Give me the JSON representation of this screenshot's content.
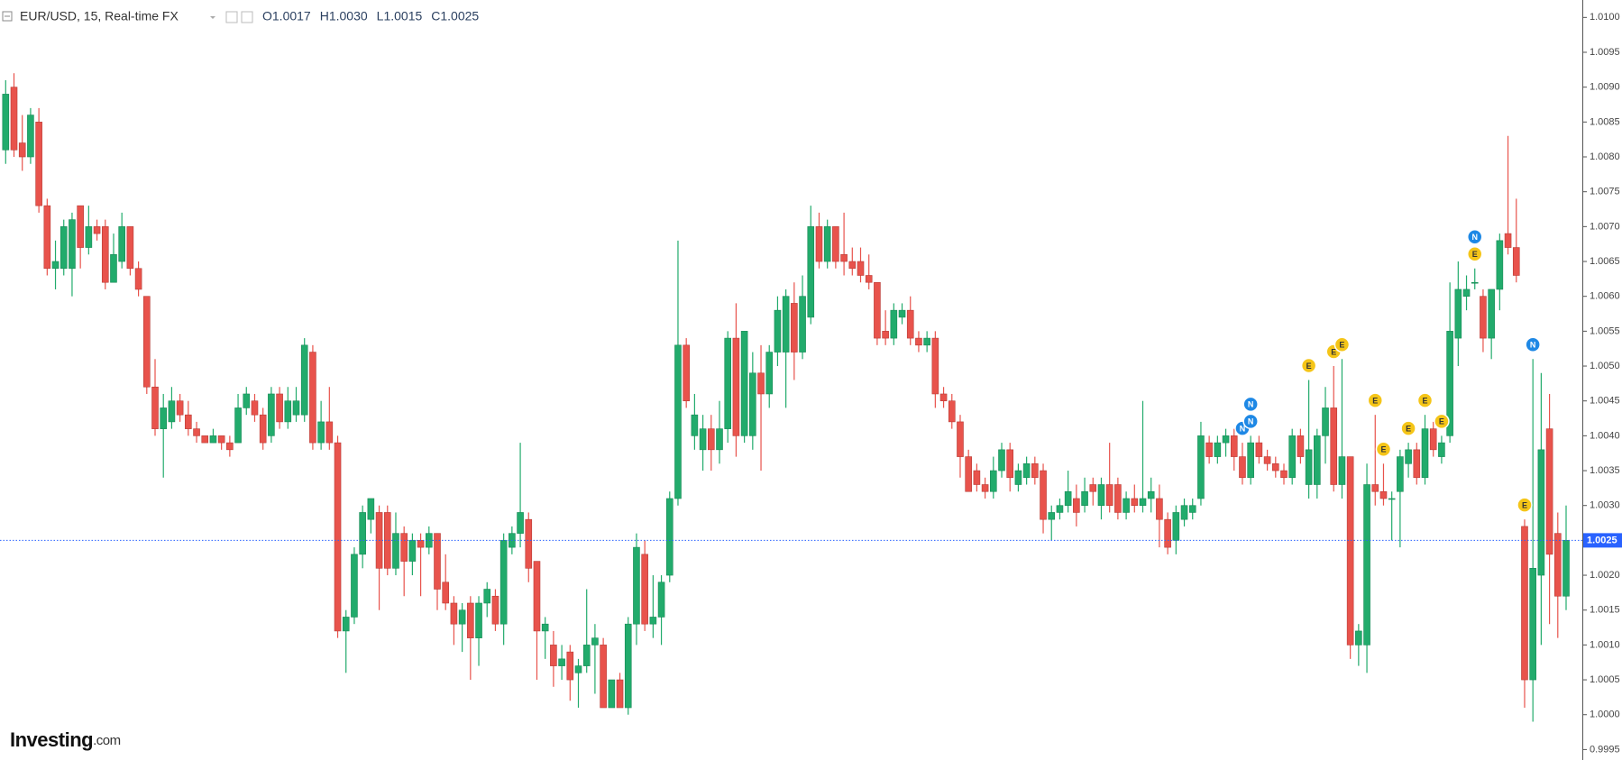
{
  "header": {
    "title": "EUR/USD, 15, Real-time FX",
    "ohlc": [
      "O1.0017",
      "H1.0030",
      "L1.0015",
      "C1.0025"
    ]
  },
  "logo": {
    "brand": "Investing",
    "suffix": ".com"
  },
  "chart_data": {
    "type": "candlestick",
    "up_color": "#22ab6c",
    "down_color": "#e8534c",
    "grid": false,
    "ylim": [
      0.99935,
      1.01025
    ],
    "yticks": [
      {
        "value": 0.9995,
        "label": "0.9995"
      },
      {
        "value": 1.0,
        "label": "1.0000"
      },
      {
        "value": 1.0005,
        "label": "1.0005"
      },
      {
        "value": 1.001,
        "label": "1.0010"
      },
      {
        "value": 1.0015,
        "label": "1.0015"
      },
      {
        "value": 1.002,
        "label": "1.0020"
      },
      {
        "value": 1.0025,
        "label": "1.0025"
      },
      {
        "value": 1.003,
        "label": "1.0030"
      },
      {
        "value": 1.0035,
        "label": "1.0035"
      },
      {
        "value": 1.004,
        "label": "1.0040"
      },
      {
        "value": 1.0045,
        "label": "1.0045"
      },
      {
        "value": 1.005,
        "label": "1.0050"
      },
      {
        "value": 1.0055,
        "label": "1.0055"
      },
      {
        "value": 1.006,
        "label": "1.0060"
      },
      {
        "value": 1.0065,
        "label": "1.0065"
      },
      {
        "value": 1.007,
        "label": "1.0070"
      },
      {
        "value": 1.0075,
        "label": "1.0075"
      },
      {
        "value": 1.008,
        "label": "1.0080"
      },
      {
        "value": 1.0085,
        "label": "1.0085"
      },
      {
        "value": 1.009,
        "label": "1.0090"
      },
      {
        "value": 1.0095,
        "label": "1.0095"
      },
      {
        "value": 1.01,
        "label": "1.0100"
      }
    ],
    "last_price": {
      "value": 1.0025,
      "label": "1.0025",
      "color": "#2962ff"
    },
    "values": [
      [
        1.0081,
        1.0091,
        1.0079,
        1.0089
      ],
      [
        1.009,
        1.0092,
        1.008,
        1.0081
      ],
      [
        1.0082,
        1.0086,
        1.0078,
        1.008
      ],
      [
        1.008,
        1.0087,
        1.0079,
        1.0086
      ],
      [
        1.0085,
        1.0087,
        1.0072,
        1.0073
      ],
      [
        1.0073,
        1.0074,
        1.0063,
        1.0064
      ],
      [
        1.0064,
        1.0068,
        1.0061,
        1.0065
      ],
      [
        1.0064,
        1.0071,
        1.0063,
        1.007
      ],
      [
        1.0064,
        1.0072,
        1.006,
        1.0071
      ],
      [
        1.0073,
        1.0073,
        1.0064,
        1.0067
      ],
      [
        1.0067,
        1.0073,
        1.0066,
        1.007
      ],
      [
        1.007,
        1.0071,
        1.0068,
        1.0069
      ],
      [
        1.007,
        1.0071,
        1.0061,
        1.0062
      ],
      [
        1.0062,
        1.0069,
        1.0062,
        1.0066
      ],
      [
        1.0065,
        1.0072,
        1.0064,
        1.007
      ],
      [
        1.007,
        1.007,
        1.0063,
        1.0064
      ],
      [
        1.0064,
        1.0065,
        1.006,
        1.0061
      ],
      [
        1.006,
        1.006,
        1.0046,
        1.0047
      ],
      [
        1.0047,
        1.0051,
        1.004,
        1.0041
      ],
      [
        1.0041,
        1.0046,
        1.0034,
        1.0044
      ],
      [
        1.0042,
        1.0047,
        1.0041,
        1.0045
      ],
      [
        1.0045,
        1.0046,
        1.0042,
        1.0043
      ],
      [
        1.0043,
        1.0045,
        1.004,
        1.0041
      ],
      [
        1.0041,
        1.0042,
        1.0039,
        1.004
      ],
      [
        1.004,
        1.004,
        1.0039,
        1.0039
      ],
      [
        1.0039,
        1.0041,
        1.0039,
        1.004
      ],
      [
        1.004,
        1.004,
        1.0038,
        1.0039
      ],
      [
        1.0039,
        1.004,
        1.0037,
        1.0038
      ],
      [
        1.0039,
        1.0046,
        1.0039,
        1.0044
      ],
      [
        1.0044,
        1.0047,
        1.0043,
        1.0046
      ],
      [
        1.0045,
        1.0046,
        1.0042,
        1.0043
      ],
      [
        1.0043,
        1.0044,
        1.0038,
        1.0039
      ],
      [
        1.004,
        1.0047,
        1.0039,
        1.0046
      ],
      [
        1.0046,
        1.0047,
        1.0041,
        1.0042
      ],
      [
        1.0042,
        1.0047,
        1.0041,
        1.0045
      ],
      [
        1.0043,
        1.0047,
        1.0042,
        1.0045
      ],
      [
        1.0043,
        1.0054,
        1.0042,
        1.0053
      ],
      [
        1.0052,
        1.0053,
        1.0038,
        1.0039
      ],
      [
        1.0039,
        1.0045,
        1.0038,
        1.0042
      ],
      [
        1.0042,
        1.0047,
        1.0038,
        1.0039
      ],
      [
        1.0039,
        1.004,
        1.0011,
        1.0012
      ],
      [
        1.0012,
        1.0015,
        1.0006,
        1.0014
      ],
      [
        1.0014,
        1.0024,
        1.0013,
        1.0023
      ],
      [
        1.0023,
        1.003,
        1.0021,
        1.0029
      ],
      [
        1.0028,
        1.0031,
        1.0026,
        1.0031
      ],
      [
        1.0029,
        1.003,
        1.0015,
        1.0021
      ],
      [
        1.0029,
        1.003,
        1.002,
        1.0021
      ],
      [
        1.0021,
        1.0029,
        1.002,
        1.0026
      ],
      [
        1.0026,
        1.0027,
        1.0017,
        1.0022
      ],
      [
        1.0022,
        1.0026,
        1.002,
        1.0025
      ],
      [
        1.0025,
        1.0026,
        1.0017,
        1.0024
      ],
      [
        1.0024,
        1.0027,
        1.0023,
        1.0026
      ],
      [
        1.0026,
        1.0026,
        1.0015,
        1.0018
      ],
      [
        1.0019,
        1.0023,
        1.0015,
        1.0016
      ],
      [
        1.0016,
        1.0017,
        1.001,
        1.0013
      ],
      [
        1.0013,
        1.0016,
        1.0009,
        1.0015
      ],
      [
        1.0016,
        1.0017,
        1.0005,
        1.0011
      ],
      [
        1.0011,
        1.0017,
        1.0007,
        1.0016
      ],
      [
        1.0016,
        1.0019,
        1.0014,
        1.0018
      ],
      [
        1.0017,
        1.0018,
        1.0012,
        1.0013
      ],
      [
        1.0013,
        1.0026,
        1.001,
        1.0025
      ],
      [
        1.0024,
        1.0027,
        1.0023,
        1.0026
      ],
      [
        1.0026,
        1.0039,
        1.0024,
        1.0029
      ],
      [
        1.0028,
        1.0029,
        1.0019,
        1.0021
      ],
      [
        1.0022,
        1.0022,
        1.0005,
        1.0012
      ],
      [
        1.0012,
        1.0014,
        1.0008,
        1.0013
      ],
      [
        1.001,
        1.0012,
        1.0004,
        1.0007
      ],
      [
        1.0007,
        1.001,
        1.0005,
        1.0008
      ],
      [
        1.0009,
        1.001,
        1.0002,
        1.0005
      ],
      [
        1.0006,
        1.0008,
        1.0001,
        1.0007
      ],
      [
        1.0007,
        1.0018,
        1.0006,
        1.001
      ],
      [
        1.001,
        1.0013,
        1.0003,
        1.0011
      ],
      [
        1.001,
        1.0011,
        1.0001,
        1.0001
      ],
      [
        1.0001,
        1.0005,
        1.0001,
        1.0005
      ],
      [
        1.0005,
        1.0006,
        1.0001,
        1.0001
      ],
      [
        1.0001,
        1.0014,
        1.0,
        1.0013
      ],
      [
        1.0013,
        1.0026,
        1.001,
        1.0024
      ],
      [
        1.0023,
        1.0025,
        1.0012,
        1.0013
      ],
      [
        1.0013,
        1.002,
        1.0011,
        1.0014
      ],
      [
        1.0014,
        1.002,
        1.001,
        1.0019
      ],
      [
        1.002,
        1.0032,
        1.0019,
        1.0031
      ],
      [
        1.0031,
        1.0068,
        1.003,
        1.0053
      ],
      [
        1.0053,
        1.0054,
        1.0044,
        1.0045
      ],
      [
        1.004,
        1.0046,
        1.0038,
        1.0043
      ],
      [
        1.0038,
        1.0043,
        1.0035,
        1.0041
      ],
      [
        1.0041,
        1.0043,
        1.0035,
        1.0038
      ],
      [
        1.0038,
        1.0045,
        1.0036,
        1.0041
      ],
      [
        1.0041,
        1.0055,
        1.0039,
        1.0054
      ],
      [
        1.0054,
        1.0059,
        1.0037,
        1.004
      ],
      [
        1.004,
        1.0055,
        1.0039,
        1.0055
      ],
      [
        1.004,
        1.0052,
        1.0038,
        1.0049
      ],
      [
        1.0049,
        1.0053,
        1.0035,
        1.0046
      ],
      [
        1.0046,
        1.0053,
        1.0044,
        1.0052
      ],
      [
        1.0052,
        1.006,
        1.005,
        1.0058
      ],
      [
        1.0052,
        1.0061,
        1.0044,
        1.006
      ],
      [
        1.0059,
        1.0062,
        1.0048,
        1.0052
      ],
      [
        1.0052,
        1.0063,
        1.0051,
        1.006
      ],
      [
        1.0057,
        1.0073,
        1.0056,
        1.007
      ],
      [
        1.007,
        1.0072,
        1.0064,
        1.0065
      ],
      [
        1.0065,
        1.0071,
        1.0064,
        1.007
      ],
      [
        1.007,
        1.007,
        1.0064,
        1.0065
      ],
      [
        1.0066,
        1.0072,
        1.0063,
        1.0065
      ],
      [
        1.0065,
        1.0067,
        1.0063,
        1.0064
      ],
      [
        1.0065,
        1.0067,
        1.0062,
        1.0063
      ],
      [
        1.0063,
        1.0066,
        1.0061,
        1.0062
      ],
      [
        1.0062,
        1.0062,
        1.0053,
        1.0054
      ],
      [
        1.0055,
        1.0058,
        1.0053,
        1.0054
      ],
      [
        1.0054,
        1.0059,
        1.0053,
        1.0058
      ],
      [
        1.0057,
        1.0059,
        1.0056,
        1.0058
      ],
      [
        1.0058,
        1.006,
        1.0053,
        1.0054
      ],
      [
        1.0054,
        1.0055,
        1.0052,
        1.0053
      ],
      [
        1.0053,
        1.0055,
        1.0052,
        1.0054
      ],
      [
        1.0054,
        1.0055,
        1.0044,
        1.0046
      ],
      [
        1.0046,
        1.0047,
        1.0044,
        1.0045
      ],
      [
        1.0045,
        1.0046,
        1.0041,
        1.0042
      ],
      [
        1.0042,
        1.0043,
        1.0034,
        1.0037
      ],
      [
        1.0037,
        1.0038,
        1.0032,
        1.0032
      ],
      [
        1.0035,
        1.0036,
        1.0032,
        1.0033
      ],
      [
        1.0033,
        1.0034,
        1.0031,
        1.0032
      ],
      [
        1.0032,
        1.0037,
        1.0031,
        1.0035
      ],
      [
        1.0035,
        1.0039,
        1.0034,
        1.0038
      ],
      [
        1.0038,
        1.0039,
        1.0032,
        1.0034
      ],
      [
        1.0033,
        1.0036,
        1.0032,
        1.0035
      ],
      [
        1.0034,
        1.0037,
        1.0033,
        1.0036
      ],
      [
        1.0036,
        1.0037,
        1.0033,
        1.0034
      ],
      [
        1.0035,
        1.0036,
        1.0026,
        1.0028
      ],
      [
        1.0028,
        1.003,
        1.0025,
        1.0029
      ],
      [
        1.0029,
        1.0031,
        1.0028,
        1.003
      ],
      [
        1.003,
        1.0035,
        1.0029,
        1.0032
      ],
      [
        1.0031,
        1.0033,
        1.0027,
        1.0029
      ],
      [
        1.003,
        1.0034,
        1.0029,
        1.0032
      ],
      [
        1.0033,
        1.0034,
        1.003,
        1.0032
      ],
      [
        1.003,
        1.0034,
        1.0028,
        1.0033
      ],
      [
        1.0033,
        1.0039,
        1.0029,
        1.003
      ],
      [
        1.0033,
        1.0034,
        1.0028,
        1.0029
      ],
      [
        1.0029,
        1.0032,
        1.0028,
        1.0031
      ],
      [
        1.0031,
        1.0033,
        1.0029,
        1.003
      ],
      [
        1.003,
        1.0045,
        1.0029,
        1.0031
      ],
      [
        1.0031,
        1.0034,
        1.0029,
        1.0032
      ],
      [
        1.0031,
        1.0033,
        1.0024,
        1.0028
      ],
      [
        1.0028,
        1.0029,
        1.0023,
        1.0024
      ],
      [
        1.0025,
        1.003,
        1.0023,
        1.0029
      ],
      [
        1.0028,
        1.0031,
        1.0027,
        1.003
      ],
      [
        1.0029,
        1.0031,
        1.0028,
        1.003
      ],
      [
        1.0031,
        1.0042,
        1.003,
        1.004
      ],
      [
        1.0039,
        1.004,
        1.0036,
        1.0037
      ],
      [
        1.0037,
        1.004,
        1.0036,
        1.0039
      ],
      [
        1.0039,
        1.0041,
        1.0037,
        1.004
      ],
      [
        1.004,
        1.0041,
        1.0035,
        1.0037
      ],
      [
        1.0037,
        1.0039,
        1.0033,
        1.0034
      ],
      [
        1.0034,
        1.004,
        1.0033,
        1.0039
      ],
      [
        1.0039,
        1.004,
        1.0036,
        1.0037
      ],
      [
        1.0037,
        1.0038,
        1.0035,
        1.0036
      ],
      [
        1.0036,
        1.0037,
        1.0034,
        1.0035
      ],
      [
        1.0035,
        1.0036,
        1.0033,
        1.0034
      ],
      [
        1.0034,
        1.0041,
        1.0033,
        1.004
      ],
      [
        1.004,
        1.0041,
        1.0036,
        1.0037
      ],
      [
        1.0033,
        1.0048,
        1.0031,
        1.0038
      ],
      [
        1.0033,
        1.0041,
        1.0031,
        1.004
      ],
      [
        1.004,
        1.0047,
        1.0036,
        1.0044
      ],
      [
        1.0044,
        1.005,
        1.0032,
        1.0033
      ],
      [
        1.0033,
        1.0051,
        1.0031,
        1.0037
      ],
      [
        1.0037,
        1.0037,
        1.0008,
        1.001
      ],
      [
        1.001,
        1.0013,
        1.0007,
        1.0012
      ],
      [
        1.001,
        1.0036,
        1.0006,
        1.0033
      ],
      [
        1.0033,
        1.0043,
        1.003,
        1.0032
      ],
      [
        1.0032,
        1.0036,
        1.003,
        1.0031
      ],
      [
        1.0031,
        1.0032,
        1.0025,
        1.0031
      ],
      [
        1.0032,
        1.0038,
        1.0024,
        1.0037
      ],
      [
        1.0036,
        1.0039,
        1.0034,
        1.0038
      ],
      [
        1.0038,
        1.0039,
        1.0033,
        1.0034
      ],
      [
        1.0034,
        1.0043,
        1.0033,
        1.0041
      ],
      [
        1.0041,
        1.0042,
        1.0037,
        1.0038
      ],
      [
        1.0037,
        1.004,
        1.0036,
        1.0039
      ],
      [
        1.004,
        1.0062,
        1.0039,
        1.0055
      ],
      [
        1.0054,
        1.0065,
        1.005,
        1.0061
      ],
      [
        1.006,
        1.0063,
        1.0058,
        1.0061
      ],
      [
        1.0062,
        1.0064,
        1.0061,
        1.0062
      ],
      [
        1.006,
        1.0061,
        1.0052,
        1.0054
      ],
      [
        1.0054,
        1.0061,
        1.0051,
        1.0061
      ],
      [
        1.0061,
        1.0069,
        1.0058,
        1.0068
      ],
      [
        1.0069,
        1.0083,
        1.0066,
        1.0067
      ],
      [
        1.0067,
        1.0074,
        1.0062,
        1.0063
      ],
      [
        1.0027,
        1.0028,
        1.0001,
        1.0005
      ],
      [
        1.0005,
        1.0051,
        0.9999,
        1.0021
      ],
      [
        1.002,
        1.0049,
        1.001,
        1.0038
      ],
      [
        1.0041,
        1.0046,
        1.0013,
        1.0023
      ],
      [
        1.0026,
        1.0029,
        1.0011,
        1.0017
      ],
      [
        1.0017,
        1.003,
        1.0015,
        1.0025
      ]
    ],
    "events": [
      {
        "label": "N",
        "index": 149,
        "color": "#1e88e5"
      },
      {
        "label": "N",
        "index": 150,
        "color": "#1e88e5"
      },
      {
        "label": "N",
        "index": 150,
        "color": "#1e88e5"
      },
      {
        "label": "E",
        "index": 157,
        "color": "#f5c518"
      },
      {
        "label": "E",
        "index": 160,
        "color": "#f5c518"
      },
      {
        "label": "E",
        "index": 161,
        "color": "#f5c518"
      },
      {
        "label": "E",
        "index": 165,
        "color": "#f5c518"
      },
      {
        "label": "E",
        "index": 166,
        "color": "#f5c518"
      },
      {
        "label": "E",
        "index": 169,
        "color": "#f5c518"
      },
      {
        "label": "E",
        "index": 171,
        "color": "#f5c518"
      },
      {
        "label": "E",
        "index": 173,
        "color": "#f5c518"
      },
      {
        "label": "E",
        "index": 177,
        "color": "#f5c518"
      },
      {
        "label": "N",
        "index": 177,
        "color": "#1e88e5"
      },
      {
        "label": "E",
        "index": 183,
        "color": "#f5c518"
      },
      {
        "label": "N",
        "index": 184,
        "color": "#1e88e5"
      }
    ]
  }
}
